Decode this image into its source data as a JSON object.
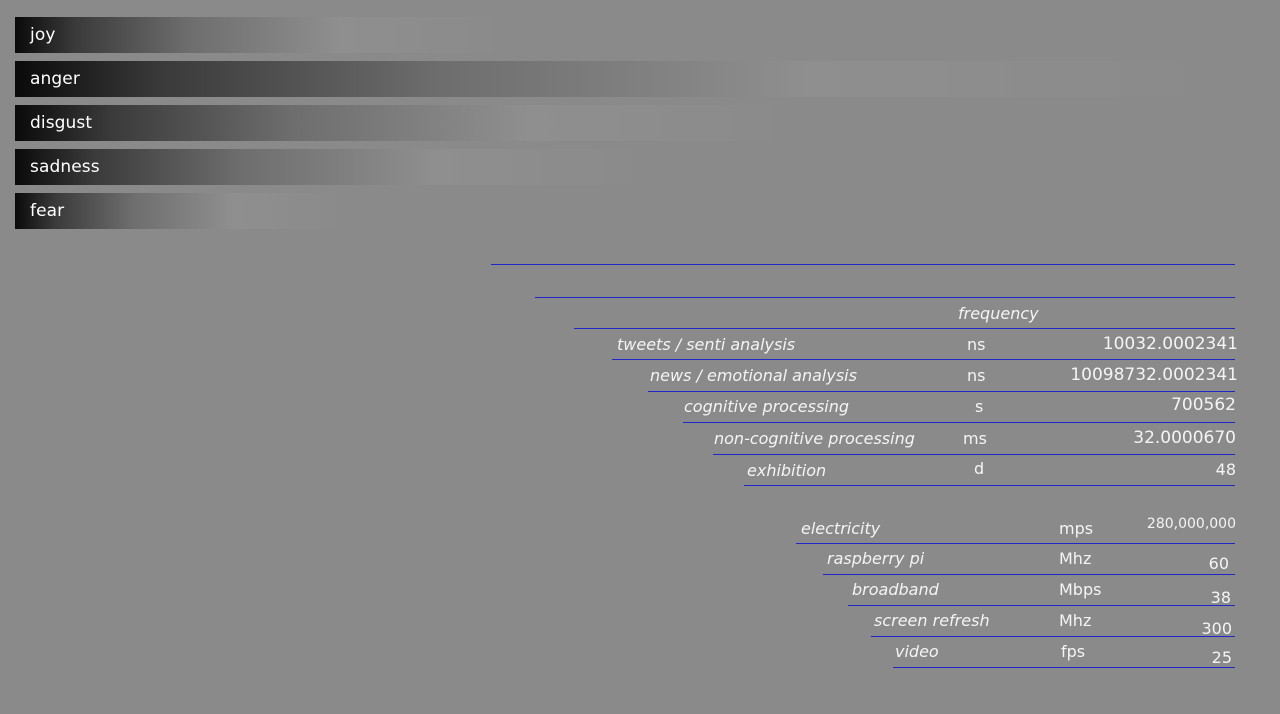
{
  "emotions": [
    {
      "label": "joy",
      "level": 0.41
    },
    {
      "label": "anger",
      "level": 1.0
    },
    {
      "label": "disgust",
      "level": 0.65
    },
    {
      "label": "sadness",
      "level": 0.53
    },
    {
      "label": "fear",
      "level": 0.275
    }
  ],
  "table1": {
    "header": "frequency",
    "rows": [
      {
        "name": "tweets / senti analysis",
        "unit": "ns",
        "value": "10032.0002341"
      },
      {
        "name": "news / emotional analysis",
        "unit": "ns",
        "value": "10098732.0002341"
      },
      {
        "name": "cognitive processing",
        "unit": "s",
        "value": "700562"
      },
      {
        "name": "non-cognitive processing",
        "unit": "ms",
        "value": "32.0000670"
      },
      {
        "name": "exhibition",
        "unit": "d",
        "value": "48"
      }
    ]
  },
  "table2": {
    "rows": [
      {
        "name": "electricity",
        "unit": "mps",
        "value": "280,000,000"
      },
      {
        "name": "raspberry pi",
        "unit": "Mhz",
        "value": "60"
      },
      {
        "name": "broadband",
        "unit": "Mbps",
        "value": "38"
      },
      {
        "name": "screen refresh",
        "unit": "Mhz",
        "value": "300"
      },
      {
        "name": "video",
        "unit": "fps",
        "value": "25"
      }
    ]
  },
  "colors": {
    "background": "#8a8a8a",
    "rule": "#1f27c8",
    "bar_start": "#0a0a0a",
    "bar_end": "#8f8f8f"
  }
}
